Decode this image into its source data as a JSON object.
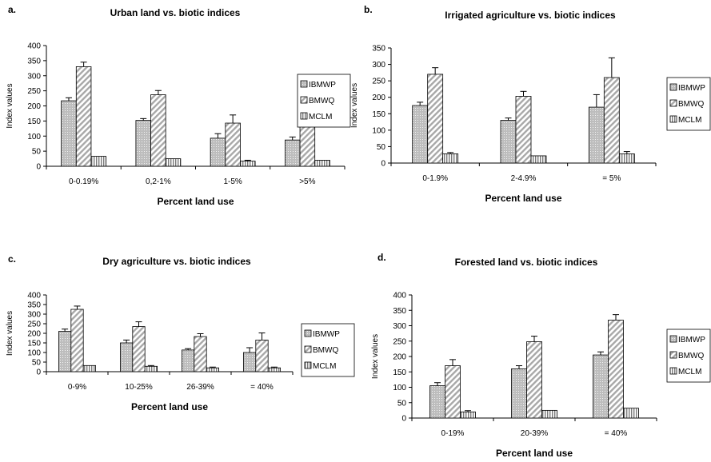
{
  "chart_data": [
    {
      "panel_label": "a.",
      "type": "bar",
      "title": "Urban land vs. biotic indices",
      "xlabel": "Percent land use",
      "ylabel": "Index values",
      "ylim": [
        0,
        400
      ],
      "yticks": [
        "0",
        "50",
        "100",
        "150",
        "200",
        "250",
        "300",
        "350",
        "400"
      ],
      "categories": [
        "0-0.19%",
        "0,2-1%",
        "1-5%",
        ">5%"
      ],
      "series": [
        {
          "name": "IBMWP",
          "values": [
            217,
            152,
            93,
            87
          ],
          "errors": [
            10,
            6,
            15,
            10
          ]
        },
        {
          "name": "BMWQ",
          "values": [
            330,
            237,
            143,
            147
          ],
          "errors": [
            15,
            14,
            27,
            20
          ]
        },
        {
          "name": "MCLM",
          "values": [
            33,
            25,
            17,
            20
          ],
          "errors": [
            0,
            0,
            3,
            0
          ]
        }
      ],
      "grid": false,
      "legend": "right"
    },
    {
      "panel_label": "b.",
      "type": "bar",
      "title": "Irrigated agriculture vs. biotic indices",
      "xlabel": "Percent land use",
      "ylabel": "Index values",
      "ylim": [
        0,
        350
      ],
      "yticks": [
        "0",
        "50",
        "100",
        "150",
        "200",
        "250",
        "300",
        "350"
      ],
      "categories": [
        "0-1.9%",
        "2-4.9%",
        "= 5%"
      ],
      "series": [
        {
          "name": "IBMWP",
          "values": [
            175,
            130,
            170
          ],
          "errors": [
            10,
            7,
            38
          ]
        },
        {
          "name": "BMWQ",
          "values": [
            270,
            203,
            260
          ],
          "errors": [
            20,
            15,
            60
          ]
        },
        {
          "name": "MCLM",
          "values": [
            28,
            22,
            28
          ],
          "errors": [
            4,
            0,
            7
          ]
        }
      ],
      "grid": false,
      "legend": "right"
    },
    {
      "panel_label": "c.",
      "type": "bar",
      "title": "Dry agriculture vs. biotic indices",
      "xlabel": "Percent land use",
      "ylabel": "Index values",
      "ylim": [
        0,
        400
      ],
      "yticks": [
        "0",
        "50",
        "100",
        "150",
        "200",
        "250",
        "300",
        "350",
        "400"
      ],
      "categories": [
        "0-9%",
        "10-25%",
        "26-39%",
        "= 40%"
      ],
      "series": [
        {
          "name": "IBMWP",
          "values": [
            210,
            150,
            113,
            100
          ],
          "errors": [
            12,
            15,
            7,
            25
          ]
        },
        {
          "name": "BMWQ",
          "values": [
            325,
            235,
            183,
            165
          ],
          "errors": [
            17,
            25,
            15,
            37
          ]
        },
        {
          "name": "MCLM",
          "values": [
            32,
            28,
            20,
            20
          ],
          "errors": [
            0,
            4,
            4,
            4
          ]
        }
      ],
      "grid": false,
      "legend": "right"
    },
    {
      "panel_label": "d.",
      "type": "bar",
      "title": "Forested land vs. biotic indices",
      "xlabel": "Percent land use",
      "ylabel": "Index values",
      "ylim": [
        0,
        400
      ],
      "yticks": [
        "0",
        "50",
        "100",
        "150",
        "200",
        "250",
        "300",
        "350",
        "400"
      ],
      "categories": [
        "0-19%",
        "20-39%",
        "= 40%"
      ],
      "series": [
        {
          "name": "IBMWP",
          "values": [
            105,
            160,
            205
          ],
          "errors": [
            10,
            10,
            10
          ]
        },
        {
          "name": "BMWQ",
          "values": [
            170,
            248,
            318
          ],
          "errors": [
            20,
            18,
            18
          ]
        },
        {
          "name": "MCLM",
          "values": [
            20,
            25,
            32
          ],
          "errors": [
            4,
            0,
            0
          ]
        }
      ],
      "grid": false,
      "legend": "right"
    }
  ]
}
